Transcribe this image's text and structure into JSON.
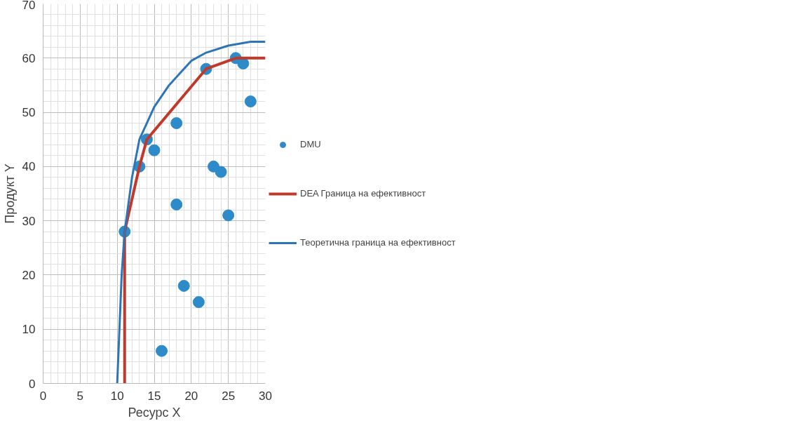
{
  "chart_data": {
    "type": "scatter",
    "xlabel": "Ресурс X",
    "ylabel": "Продукт Y",
    "xlim": [
      0,
      30
    ],
    "ylim": [
      0,
      70
    ],
    "xticks": [
      0,
      5,
      10,
      15,
      20,
      25,
      30
    ],
    "yticks": [
      0,
      10,
      20,
      30,
      40,
      50,
      60,
      70
    ],
    "grid": true,
    "legend": "right",
    "series": [
      {
        "name": "DMU",
        "color": "#2e8bc9",
        "marker": "circle",
        "x": [
          11,
          13,
          14,
          15,
          16,
          18,
          18,
          19,
          21,
          22,
          23,
          24,
          25,
          26,
          27,
          28
        ],
        "values": [
          28,
          40,
          45,
          43,
          6,
          48,
          33,
          18,
          15,
          58,
          40,
          39,
          31,
          60,
          59,
          52
        ]
      },
      {
        "name": "DEA Граница на ефективност",
        "type": "line",
        "color": "#c0392b",
        "marker": "none",
        "x": [
          11,
          11,
          13,
          14,
          22,
          26,
          30
        ],
        "values": [
          0,
          28,
          40,
          45,
          58,
          60,
          60
        ]
      },
      {
        "name": "Теоретична граница на ефективност",
        "type": "line",
        "color": "#2e75b6",
        "marker": "none",
        "x": [
          10,
          10.3,
          10.6,
          11,
          12,
          13,
          15,
          17,
          20,
          22,
          25,
          28,
          30
        ],
        "values": [
          0,
          10,
          20,
          28,
          38,
          45,
          51,
          55,
          59.5,
          61,
          62.3,
          63,
          63
        ]
      }
    ]
  }
}
